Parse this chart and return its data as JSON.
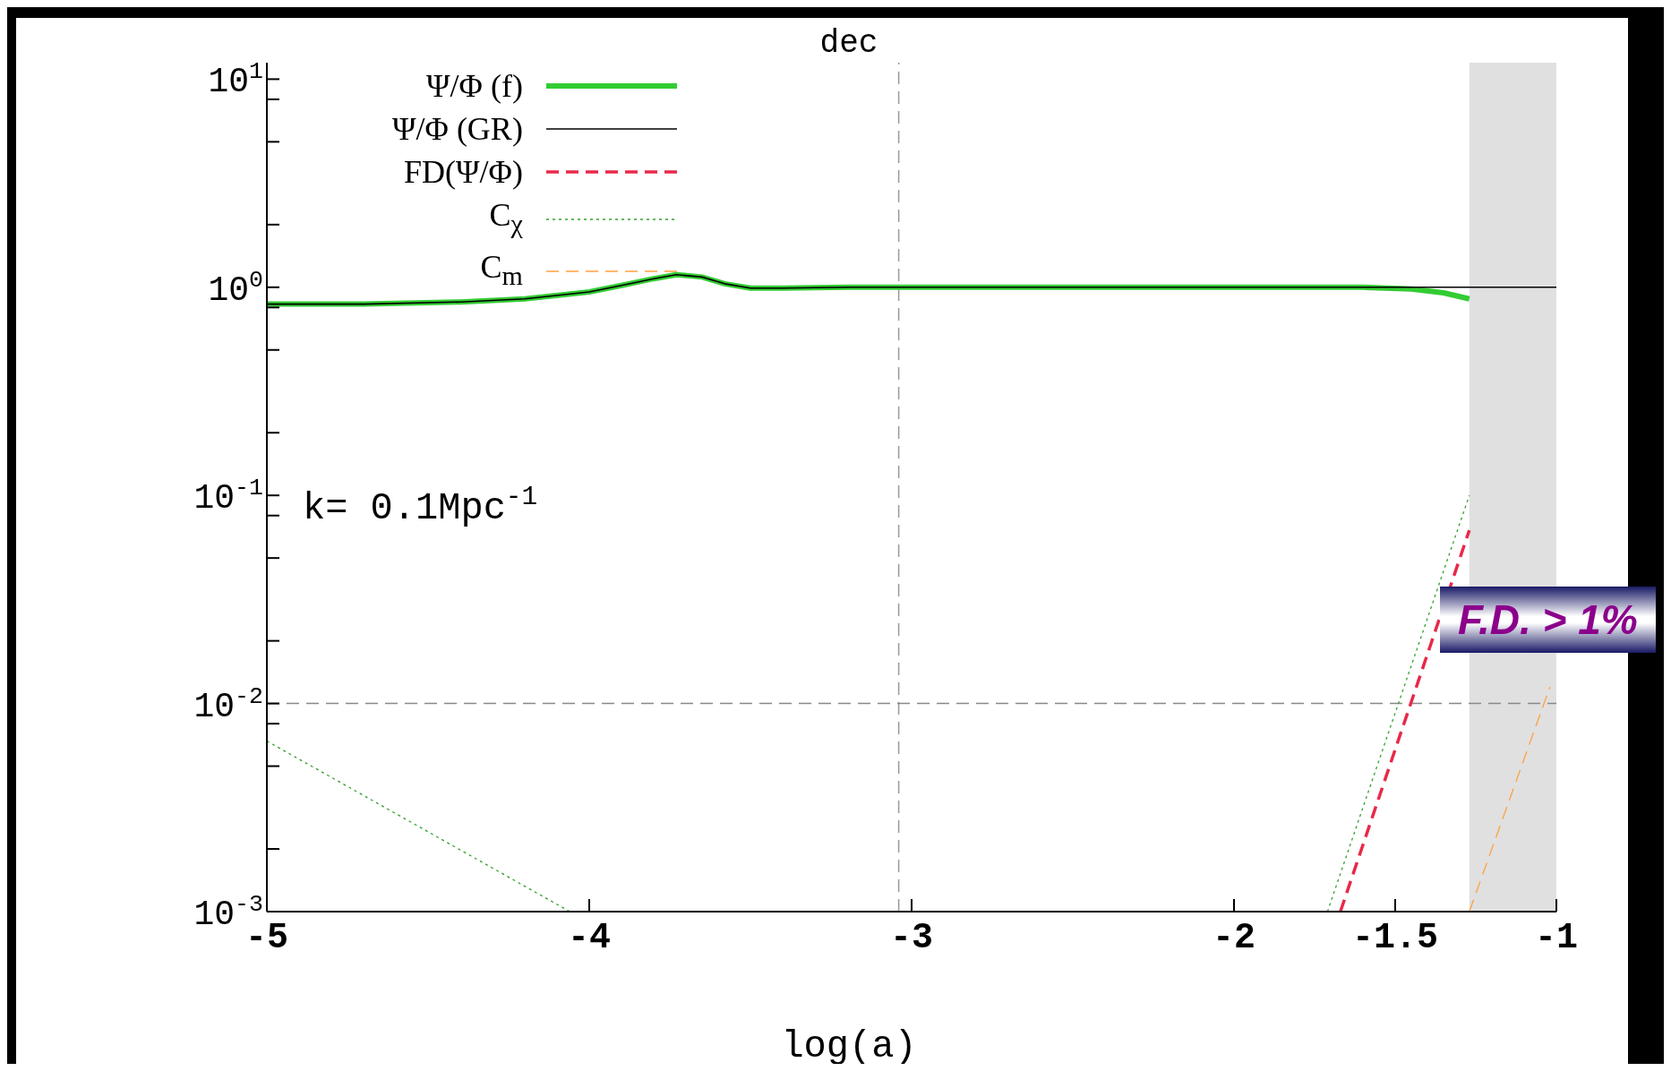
{
  "chart_data": {
    "type": "line",
    "title": "dec",
    "xlabel": "log(a)",
    "xlim": [
      -5,
      -1
    ],
    "xticks": [
      -5,
      -4,
      -3,
      -2,
      -1.5,
      -1
    ],
    "ylim": [
      0.001,
      12
    ],
    "log": "y",
    "yticks": [
      {
        "value": 0.001,
        "label": "10$^{-3}$"
      },
      {
        "value": 0.002,
        "label": null
      },
      {
        "value": 0.005,
        "label": null
      },
      {
        "value": 0.008,
        "label": null
      },
      {
        "value": 0.01,
        "label": "10$^{-2}$"
      },
      {
        "value": 0.02,
        "label": null
      },
      {
        "value": 0.05,
        "label": null
      },
      {
        "value": 0.08,
        "label": null
      },
      {
        "value": 0.1,
        "label": "10$^{-1}$"
      },
      {
        "value": 0.2,
        "label": null
      },
      {
        "value": 0.5,
        "label": null
      },
      {
        "value": 0.8,
        "label": null
      },
      {
        "value": 1,
        "label": "10$^{0}$"
      },
      {
        "value": 2,
        "label": null
      },
      {
        "value": 5,
        "label": null
      },
      {
        "value": 8,
        "label": null
      },
      {
        "value": 10,
        "label": "10$^{1}$"
      }
    ],
    "legend": "top left",
    "series": [
      {
        "name": "Ψ/Φ (f)",
        "color": "#33cc33",
        "line_style": "solid",
        "x": [
          -5,
          -4.7,
          -4.4,
          -4.2,
          -4.0,
          -3.9,
          -3.8,
          -3.73,
          -3.65,
          -3.58,
          -3.5,
          -3.4,
          -3.2,
          -3.0,
          -2.5,
          -2.0,
          -1.6,
          -1.45,
          -1.35,
          -1.27
        ],
        "values": [
          0.83,
          0.83,
          0.85,
          0.88,
          0.95,
          1.02,
          1.1,
          1.15,
          1.12,
          1.04,
          0.99,
          0.99,
          1.0,
          1.0,
          1.0,
          1.0,
          1.0,
          0.98,
          0.94,
          0.88
        ]
      },
      {
        "name": "Ψ/Φ (GR)",
        "color": "#000000",
        "line_style": "solid",
        "x": [
          -5,
          -4.7,
          -4.4,
          -4.2,
          -4.0,
          -3.9,
          -3.8,
          -3.73,
          -3.65,
          -3.58,
          -3.5,
          -3.4,
          -3.2,
          -3.0,
          -2.5,
          -2.0,
          -1.6,
          -1.4,
          -1.27,
          -1
        ],
        "values": [
          0.83,
          0.83,
          0.85,
          0.88,
          0.95,
          1.02,
          1.1,
          1.15,
          1.12,
          1.04,
          0.99,
          0.99,
          1.0,
          1.0,
          1.0,
          1.0,
          1.0,
          1.0,
          1.0,
          1.0
        ]
      },
      {
        "name": "FD(Ψ/Φ)",
        "color": "#e8294a",
        "line_style": "dashed",
        "x": [
          -1.67,
          -1.27
        ],
        "values": [
          0.001,
          0.068
        ]
      },
      {
        "name": "C$_{χ}$",
        "color": "#33a02c",
        "line_style": "dotted",
        "x": [
          -5,
          -4.06,
          -3.5,
          -1.71,
          -1.27
        ],
        "values": [
          0.0066,
          0.001,
          null,
          0.001,
          0.1
        ]
      },
      {
        "name": "C$_{m}$",
        "color": "#ffa040",
        "line_style": "dashed",
        "x": [
          -1.27,
          -1.02
        ],
        "values": [
          0.001,
          0.012
        ]
      }
    ],
    "ref_lines": [
      {
        "axis": "x",
        "value": -3.04,
        "color": "#999999",
        "line_style": "dashed"
      },
      {
        "axis": "y",
        "value": 0.01,
        "color": "#888888",
        "line_style": "dashed"
      }
    ],
    "bands": [
      {
        "axis": "x",
        "from": -1.27,
        "to": -1,
        "color": "#e0e0e0"
      }
    ],
    "annotations": [
      "k= 0.1Mpc$^{-1}$",
      "F.D. > 1%"
    ]
  }
}
